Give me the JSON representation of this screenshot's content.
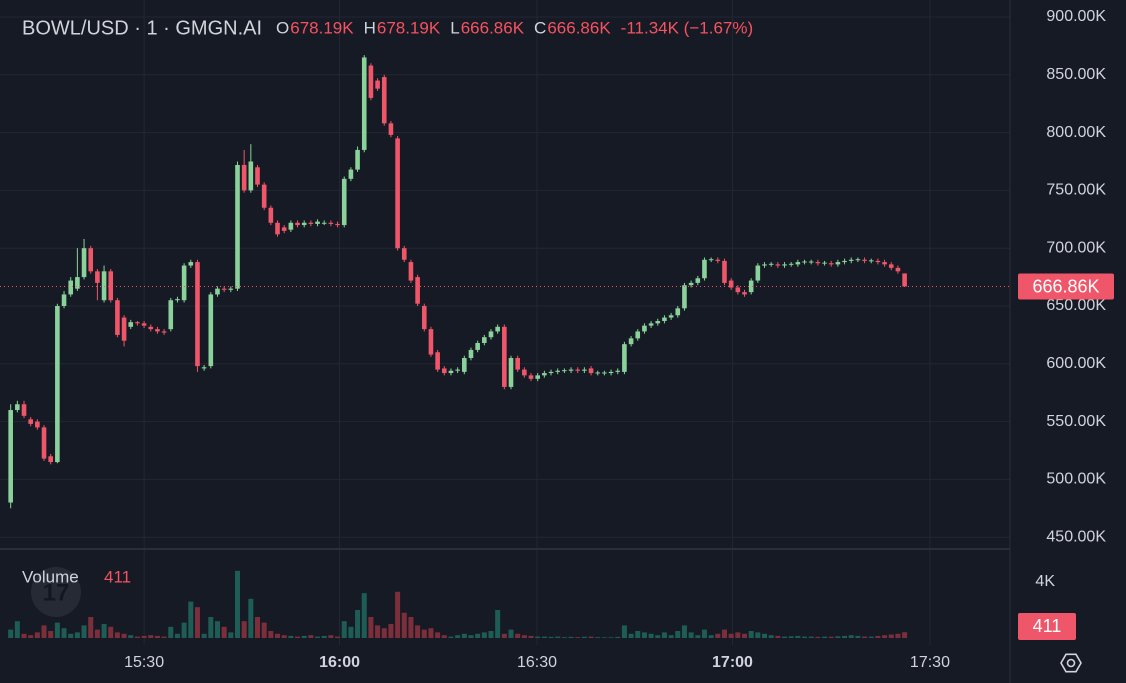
{
  "chart_data": {
    "type": "candlestick",
    "title": "BOWL/USD · 1 · GMGN.AI",
    "ohlc": [
      {
        "label": "O",
        "value": "678.19K"
      },
      {
        "label": "H",
        "value": "678.19K"
      },
      {
        "label": "L",
        "value": "666.86K"
      },
      {
        "label": "C",
        "value": "666.86K"
      }
    ],
    "change": "-11.34K (−1.67%)",
    "volume_label": "Volume",
    "up_color": "#8ad29a",
    "down_color": "#f0566a",
    "volume_up_color": "#1e5d56",
    "volume_down_color": "#7c2f3b",
    "open": [
      480,
      560,
      565,
      552,
      550,
      545,
      520,
      515,
      650,
      660,
      665,
      675,
      700,
      680,
      655,
      680,
      655,
      640,
      632,
      636,
      635,
      632,
      630,
      628,
      630,
      655,
      655,
      685,
      688,
      596,
      598,
      660,
      665,
      664,
      665,
      772,
      750,
      770,
      755,
      735,
      722,
      718,
      716,
      722,
      720,
      722,
      721,
      722,
      722,
      721,
      720,
      760,
      768,
      785,
      858,
      845,
      848,
      808,
      795,
      700,
      688,
      675,
      650,
      630,
      610,
      596,
      592,
      594,
      593,
      605,
      612,
      618,
      623,
      628,
      632,
      580,
      605,
      595,
      590,
      587,
      590,
      592,
      593,
      594,
      594,
      595,
      594,
      596,
      592,
      592,
      592,
      593,
      593,
      617,
      622,
      628,
      633,
      635,
      637,
      640,
      642,
      648,
      668,
      670,
      674,
      690,
      690,
      689,
      672,
      666,
      662,
      662,
      672,
      685,
      686,
      686,
      685,
      686,
      686,
      688,
      688,
      688,
      687,
      687,
      686,
      688,
      689,
      690,
      690,
      689,
      689,
      688,
      686,
      683,
      678.19
    ],
    "high": [
      565,
      568,
      568,
      554,
      552,
      547,
      522,
      652,
      663,
      675,
      700,
      708,
      702,
      682,
      685,
      682,
      657,
      642,
      638,
      637,
      637,
      634,
      632,
      630,
      657,
      658,
      687,
      690,
      690,
      599,
      662,
      667,
      667,
      667,
      775,
      785,
      790,
      772,
      757,
      737,
      724,
      720,
      724,
      724,
      724,
      724,
      725,
      724,
      724,
      723,
      762,
      770,
      788,
      867,
      860,
      847,
      850,
      810,
      797,
      702,
      690,
      677,
      652,
      632,
      612,
      598,
      596,
      597,
      607,
      614,
      620,
      625,
      630,
      634,
      634,
      607,
      607,
      597,
      592,
      592,
      594,
      595,
      596,
      596,
      597,
      597,
      597,
      598,
      594,
      594,
      595,
      596,
      619,
      624,
      630,
      635,
      637,
      639,
      642,
      644,
      650,
      670,
      672,
      676,
      692,
      692,
      692,
      691,
      674,
      668,
      664,
      674,
      687,
      688,
      688,
      688,
      688,
      688,
      690,
      690,
      690,
      690,
      689,
      689,
      690,
      691,
      692,
      692,
      692,
      691,
      691,
      690,
      688,
      685,
      678.19
    ],
    "low": [
      475,
      558,
      553,
      546,
      543,
      516,
      513,
      514,
      648,
      658,
      663,
      673,
      678,
      655,
      653,
      653,
      623,
      615,
      630,
      633,
      631,
      628,
      626,
      625,
      628,
      653,
      653,
      683,
      593,
      594,
      596,
      658,
      662,
      662,
      663,
      748,
      748,
      753,
      733,
      720,
      710,
      713,
      714,
      718,
      718,
      719,
      719,
      720,
      719,
      718,
      718,
      758,
      766,
      783,
      828,
      836,
      806,
      796,
      698,
      688,
      670,
      650,
      628,
      606,
      593,
      590,
      590,
      592,
      591,
      603,
      610,
      616,
      621,
      626,
      578,
      578,
      593,
      588,
      585,
      585,
      588,
      590,
      591,
      592,
      592,
      592,
      592,
      590,
      590,
      590,
      590,
      591,
      591,
      615,
      620,
      626,
      631,
      633,
      635,
      638,
      640,
      646,
      666,
      668,
      672,
      688,
      687,
      668,
      664,
      660,
      658,
      660,
      670,
      683,
      684,
      683,
      683,
      684,
      684,
      686,
      686,
      685,
      685,
      684,
      684,
      686,
      687,
      688,
      687,
      687,
      686,
      684,
      681,
      678,
      666.86
    ],
    "close": [
      560,
      565,
      555,
      548,
      545,
      518,
      515,
      650,
      660,
      672,
      675,
      700,
      680,
      670,
      680,
      655,
      625,
      620,
      636,
      635,
      633,
      630,
      628,
      627,
      655,
      656,
      685,
      688,
      598,
      597,
      660,
      665,
      664,
      665,
      772,
      750,
      775,
      755,
      735,
      722,
      712,
      715,
      722,
      720,
      722,
      721,
      723,
      722,
      721,
      720,
      760,
      768,
      785,
      865,
      830,
      838,
      808,
      798,
      700,
      690,
      672,
      652,
      630,
      608,
      595,
      592,
      594,
      595,
      605,
      612,
      618,
      623,
      628,
      632,
      580,
      605,
      595,
      590,
      587,
      590,
      592,
      593,
      594,
      594.5,
      595,
      594,
      595,
      592,
      592.5,
      592.5,
      593,
      594,
      617,
      622,
      628,
      633,
      635,
      637,
      640,
      642,
      648,
      668,
      670,
      674,
      690,
      690.5,
      689,
      670,
      666,
      662,
      660,
      672,
      685,
      686,
      686.5,
      685,
      686,
      686.5,
      688,
      688.5,
      688.5,
      687,
      687.5,
      686,
      688,
      689,
      690,
      690.5,
      689,
      689.5,
      688,
      686,
      683,
      680,
      666.86
    ],
    "volume": [
      600,
      1200,
      300,
      200,
      400,
      900,
      500,
      1100,
      700,
      300,
      400,
      900,
      1500,
      600,
      1000,
      800,
      400,
      300,
      200,
      100,
      150,
      200,
      150,
      100,
      800,
      300,
      1100,
      2600,
      2200,
      300,
      1500,
      1200,
      800,
      400,
      4800,
      1200,
      2800,
      1500,
      1100,
      500,
      300,
      200,
      150,
      100,
      150,
      200,
      100,
      150,
      200,
      100,
      1200,
      800,
      2000,
      3200,
      1500,
      900,
      700,
      1000,
      3300,
      1800,
      1500,
      900,
      600,
      700,
      400,
      200,
      100,
      200,
      300,
      200,
      300,
      400,
      500,
      2000,
      300,
      600,
      300,
      200,
      150,
      100,
      100,
      80,
      100,
      60,
      80,
      60,
      90,
      100,
      60,
      50,
      50,
      80,
      900,
      300,
      500,
      400,
      300,
      200,
      400,
      200,
      500,
      900,
      400,
      200,
      600,
      200,
      300,
      600,
      300,
      400,
      300,
      500,
      400,
      300,
      200,
      150,
      100,
      120,
      150,
      100,
      100,
      80,
      100,
      90,
      120,
      150,
      200,
      150,
      100,
      100,
      150,
      200,
      250,
      300,
      411
    ],
    "xlim": [
      -1.6,
      149.8
    ],
    "xticks": [
      {
        "value": 20,
        "label": "15:30"
      },
      {
        "value": 49.3,
        "label": "16:00"
      },
      {
        "value": 78.9,
        "label": "16:30"
      },
      {
        "value": 108.2,
        "label": "17:00"
      },
      {
        "value": 137.8,
        "label": "17:30"
      }
    ],
    "ylim": [
      439.8,
      914.7
    ],
    "yticks": [
      {
        "value": 450,
        "label": "450.00K"
      },
      {
        "value": 500,
        "label": "500.00K"
      },
      {
        "value": 550,
        "label": "550.00K"
      },
      {
        "value": 600,
        "label": "600.00K"
      },
      {
        "value": 650,
        "label": "650.00K"
      },
      {
        "value": 700,
        "label": "700.00K"
      },
      {
        "value": 750,
        "label": "750.00K"
      },
      {
        "value": 800,
        "label": "800.00K"
      },
      {
        "value": 850,
        "label": "850.00K"
      },
      {
        "value": 900,
        "label": "900.00K"
      }
    ],
    "volume_ylim": [
      0,
      5000
    ],
    "volume_yticks": [
      {
        "value": 4000,
        "label": "4K"
      }
    ],
    "grid": true
  }
}
